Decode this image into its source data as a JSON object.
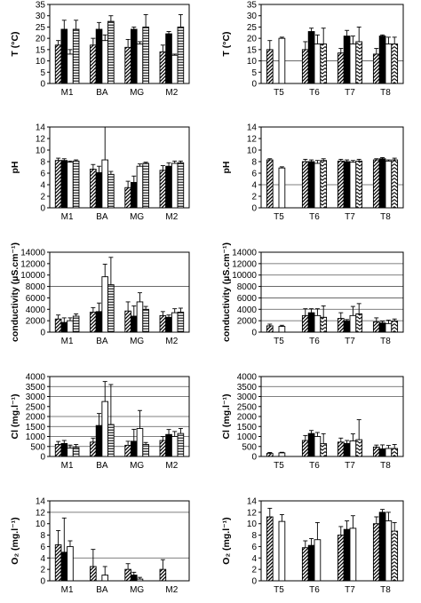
{
  "chart_data": [
    {
      "type": "bar",
      "panel": "T-sites-M",
      "ylabel": "T (°C)",
      "ylim": [
        0,
        35
      ],
      "yticks": [
        0,
        5,
        10,
        15,
        20,
        25,
        30,
        35
      ],
      "categories": [
        "M1",
        "BA",
        "MG",
        "M2"
      ],
      "patterns": [
        "diag",
        "solid",
        "white",
        "hstripe"
      ],
      "reference_lines": [],
      "values": [
        [
          17,
          24,
          13,
          24
        ],
        [
          17,
          24,
          19,
          27.5
        ],
        [
          16,
          24,
          17.5,
          25
        ],
        [
          14,
          22,
          12.5,
          25
        ]
      ],
      "errors": [
        [
          2,
          4,
          2,
          4
        ],
        [
          3,
          3,
          2.5,
          2.5
        ],
        [
          3.5,
          1,
          1,
          5.5
        ],
        [
          3,
          1,
          0.5,
          5.5
        ]
      ]
    },
    {
      "type": "bar",
      "panel": "T-sites-T",
      "ylabel": "T (°C)",
      "ylim": [
        0,
        35
      ],
      "yticks": [
        0,
        5,
        10,
        15,
        20,
        25,
        30,
        35
      ],
      "categories": [
        "T5",
        "T6",
        "T7",
        "T8"
      ],
      "patterns": [
        "diag",
        "solid",
        "white",
        "chevron"
      ],
      "reference_lines": [
        10
      ],
      "values": [
        [
          15,
          null,
          20,
          null
        ],
        [
          15,
          23,
          17.5,
          17.5
        ],
        [
          13.5,
          21,
          17.5,
          18.5
        ],
        [
          13,
          21,
          17.5,
          17.5
        ]
      ],
      "errors": [
        [
          4,
          0,
          0.5,
          0
        ],
        [
          3.5,
          1.5,
          4,
          7
        ],
        [
          2,
          2.5,
          3.5,
          6.5
        ],
        [
          2.5,
          0.5,
          3,
          3
        ]
      ]
    },
    {
      "type": "bar",
      "panel": "pH-sites-M",
      "ylabel": "pH",
      "ylim": [
        0,
        14
      ],
      "yticks": [
        0,
        2,
        4,
        6,
        8,
        10,
        12,
        14
      ],
      "categories": [
        "M1",
        "BA",
        "MG",
        "M2"
      ],
      "patterns": [
        "diag",
        "solid",
        "white",
        "hstripe"
      ],
      "reference_lines": [],
      "values": [
        [
          8.2,
          8.2,
          7.9,
          8.1
        ],
        [
          6.7,
          6.1,
          8.3,
          5.8
        ],
        [
          3.5,
          4.4,
          7.2,
          7.7
        ],
        [
          6.5,
          7.2,
          7.7,
          7.8
        ]
      ],
      "errors": [
        [
          0.4,
          0.3,
          0.2,
          0.2
        ],
        [
          0.8,
          1.1,
          5.7,
          0.5
        ],
        [
          1.1,
          1.1,
          0.4,
          0.2
        ],
        [
          0.8,
          0.6,
          0.4,
          0.3
        ]
      ]
    },
    {
      "type": "bar",
      "panel": "pH-sites-T",
      "ylabel": "pH",
      "ylim": [
        0,
        14
      ],
      "yticks": [
        0,
        2,
        4,
        6,
        8,
        10,
        12,
        14
      ],
      "categories": [
        "T5",
        "T6",
        "T7",
        "T8"
      ],
      "patterns": [
        "diag",
        "solid",
        "white",
        "chevron"
      ],
      "reference_lines": [
        4
      ],
      "values": [
        [
          8.3,
          null,
          6.9,
          null
        ],
        [
          8.0,
          8.0,
          7.7,
          8.2
        ],
        [
          8.1,
          8.0,
          7.9,
          8.1
        ],
        [
          8.3,
          8.5,
          8.1,
          8.3
        ]
      ],
      "errors": [
        [
          0.2,
          0,
          0.2,
          0
        ],
        [
          0.4,
          0.3,
          0.5,
          0.3
        ],
        [
          0.3,
          0.3,
          0.3,
          0.3
        ],
        [
          0.2,
          0.2,
          0.2,
          0.3
        ]
      ]
    },
    {
      "type": "bar",
      "panel": "conductivity-sites-M",
      "ylabel": "conductivity (µS.cm⁻¹)",
      "ylim": [
        0,
        14000
      ],
      "yticks": [
        0,
        2000,
        4000,
        6000,
        8000,
        10000,
        12000,
        14000
      ],
      "categories": [
        "M1",
        "BA",
        "MG",
        "M2"
      ],
      "patterns": [
        "diag",
        "solid",
        "white",
        "hstripe"
      ],
      "reference_lines": [
        8000
      ],
      "values": [
        [
          2300,
          1700,
          2000,
          2800
        ],
        [
          3500,
          3600,
          9700,
          8300
        ],
        [
          3700,
          2800,
          5300,
          4000
        ],
        [
          2900,
          2600,
          3400,
          3500
        ]
      ],
      "errors": [
        [
          700,
          800,
          500,
          400
        ],
        [
          800,
          1500,
          2200,
          4800
        ],
        [
          1600,
          1800,
          1600,
          500
        ],
        [
          700,
          400,
          700,
          700
        ]
      ]
    },
    {
      "type": "bar",
      "panel": "conductivity-sites-T",
      "ylabel": "conductivity (µS.cm⁻¹)",
      "ylim": [
        0,
        14000
      ],
      "yticks": [
        0,
        2000,
        4000,
        6000,
        8000,
        10000,
        12000,
        14000
      ],
      "categories": [
        "T5",
        "T6",
        "T7",
        "T8"
      ],
      "patterns": [
        "diag",
        "solid",
        "white",
        "chevron"
      ],
      "reference_lines": [
        2000,
        4000,
        6000,
        8000,
        10000,
        12000
      ],
      "values": [
        [
          1100,
          null,
          1000,
          null
        ],
        [
          2900,
          3400,
          2900,
          2600
        ],
        [
          2400,
          1900,
          2900,
          3200
        ],
        [
          1800,
          1600,
          1500,
          1900
        ]
      ],
      "errors": [
        [
          300,
          0,
          200,
          0
        ],
        [
          1200,
          700,
          1200,
          2000
        ],
        [
          1000,
          300,
          1600,
          1800
        ],
        [
          700,
          300,
          600,
          400
        ]
      ]
    },
    {
      "type": "bar",
      "panel": "Cl-sites-M",
      "ylabel": "Cl (mg.l⁻¹)",
      "ylim": [
        0,
        4000
      ],
      "yticks": [
        0,
        500,
        1000,
        1500,
        2000,
        2500,
        3000,
        3500,
        4000
      ],
      "categories": [
        "M1",
        "BA",
        "MG",
        "M2"
      ],
      "patterns": [
        "diag",
        "solid",
        "white",
        "hstripe"
      ],
      "reference_lines": [
        500,
        1000,
        1500,
        2000,
        3000,
        3500
      ],
      "values": [
        [
          600,
          650,
          420,
          450
        ],
        [
          720,
          1550,
          2750,
          1600
        ],
        [
          560,
          760,
          1400,
          600
        ],
        [
          800,
          1100,
          1000,
          1150
        ]
      ],
      "errors": [
        [
          150,
          150,
          150,
          150
        ],
        [
          200,
          600,
          1000,
          2000
        ],
        [
          200,
          600,
          900,
          100
        ],
        [
          200,
          250,
          250,
          250
        ]
      ]
    },
    {
      "type": "bar",
      "panel": "Cl-sites-T",
      "ylabel": "Cl (mg.l⁻¹)",
      "ylim": [
        0,
        4000
      ],
      "yticks": [
        0,
        500,
        1000,
        1500,
        2000,
        2500,
        3000,
        3500,
        4000
      ],
      "categories": [
        "T5",
        "T6",
        "T7",
        "T8"
      ],
      "patterns": [
        "diag",
        "solid",
        "white",
        "chevron"
      ],
      "reference_lines": [
        3000,
        3500
      ],
      "values": [
        [
          150,
          null,
          180,
          null
        ],
        [
          800,
          1150,
          1000,
          640
        ],
        [
          720,
          650,
          780,
          840
        ],
        [
          470,
          380,
          400,
          400
        ]
      ],
      "errors": [
        [
          50,
          0,
          30,
          0
        ],
        [
          250,
          150,
          200,
          500
        ],
        [
          200,
          150,
          350,
          1000
        ],
        [
          100,
          200,
          150,
          200
        ]
      ]
    },
    {
      "type": "bar",
      "panel": "O2-sites-M",
      "ylabel": "O₂ (mg.l⁻¹)",
      "ylim": [
        0,
        14
      ],
      "yticks": [
        0,
        2,
        4,
        6,
        8,
        10,
        12,
        14
      ],
      "categories": [
        "M1",
        "BA",
        "MG",
        "M2"
      ],
      "patterns": [
        "diag",
        "solid",
        "white",
        "hstripe"
      ],
      "reference_lines": [
        4,
        12
      ],
      "values": [
        [
          6.3,
          5.0,
          6.0,
          null
        ],
        [
          2.5,
          null,
          1.0,
          null
        ],
        [
          2.0,
          1.0,
          0.3,
          null
        ],
        [
          2.0,
          null,
          null,
          null
        ]
      ],
      "errors": [
        [
          2.5,
          6.0,
          1.0,
          0
        ],
        [
          3.0,
          0,
          1.5,
          0
        ],
        [
          1.0,
          0.5,
          0.3,
          0
        ],
        [
          1.7,
          0,
          0,
          0
        ]
      ]
    },
    {
      "type": "bar",
      "panel": "O2-sites-T",
      "ylabel": "O₂ (mg.l⁻¹)",
      "ylim": [
        0,
        14
      ],
      "yticks": [
        0,
        2,
        4,
        6,
        8,
        10,
        12,
        14
      ],
      "categories": [
        "T5",
        "T6",
        "T7",
        "T8"
      ],
      "patterns": [
        "diag",
        "solid",
        "white",
        "chevron"
      ],
      "reference_lines": [],
      "values": [
        [
          11.2,
          null,
          10.4,
          null
        ],
        [
          5.8,
          6.2,
          7.2,
          null
        ],
        [
          8.0,
          9.0,
          9.2,
          null
        ],
        [
          10.0,
          12.0,
          10.5,
          8.7
        ]
      ],
      "errors": [
        [
          1.5,
          0,
          1.2,
          0
        ],
        [
          1.2,
          1.2,
          3.0,
          0
        ],
        [
          1.5,
          1.5,
          2.2,
          0
        ],
        [
          1.2,
          0.5,
          1.5,
          1.5
        ]
      ]
    }
  ]
}
